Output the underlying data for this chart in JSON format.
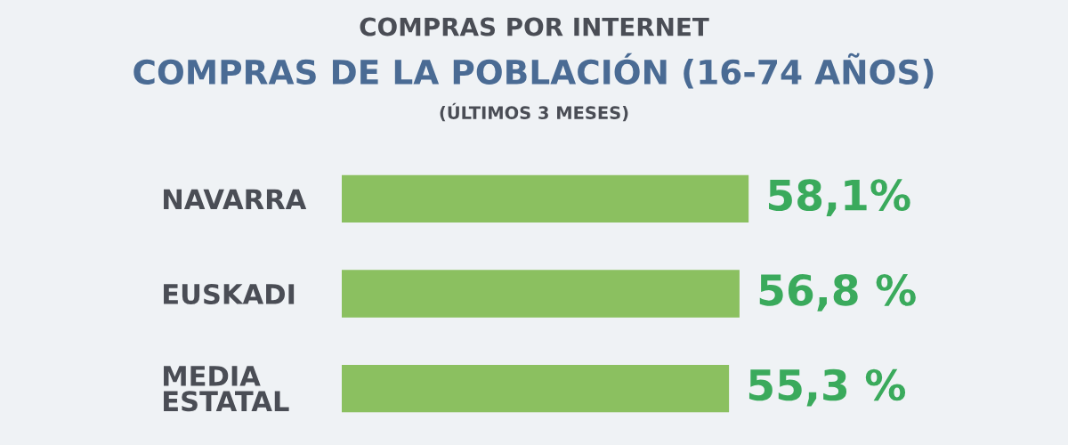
{
  "chart_data": {
    "type": "bar",
    "orientation": "horizontal",
    "title": "COMPRAS POR INTERNET",
    "subtitle": "COMPRAS DE LA POBLACIÓN (16-74 AÑOS)",
    "annotations": [
      "(ÚLTIMOS 3 MESES)"
    ],
    "categories": [
      "NAVARRA",
      "EUSKADI",
      "MEDIA\nESTATAL"
    ],
    "values": [
      58.1,
      56.8,
      55.3
    ],
    "value_labels": [
      "58,1%",
      "56,8 %",
      "55,3 %"
    ],
    "color": "#8bc060",
    "tick_labels": "y",
    "grid": false,
    "legend": false
  }
}
